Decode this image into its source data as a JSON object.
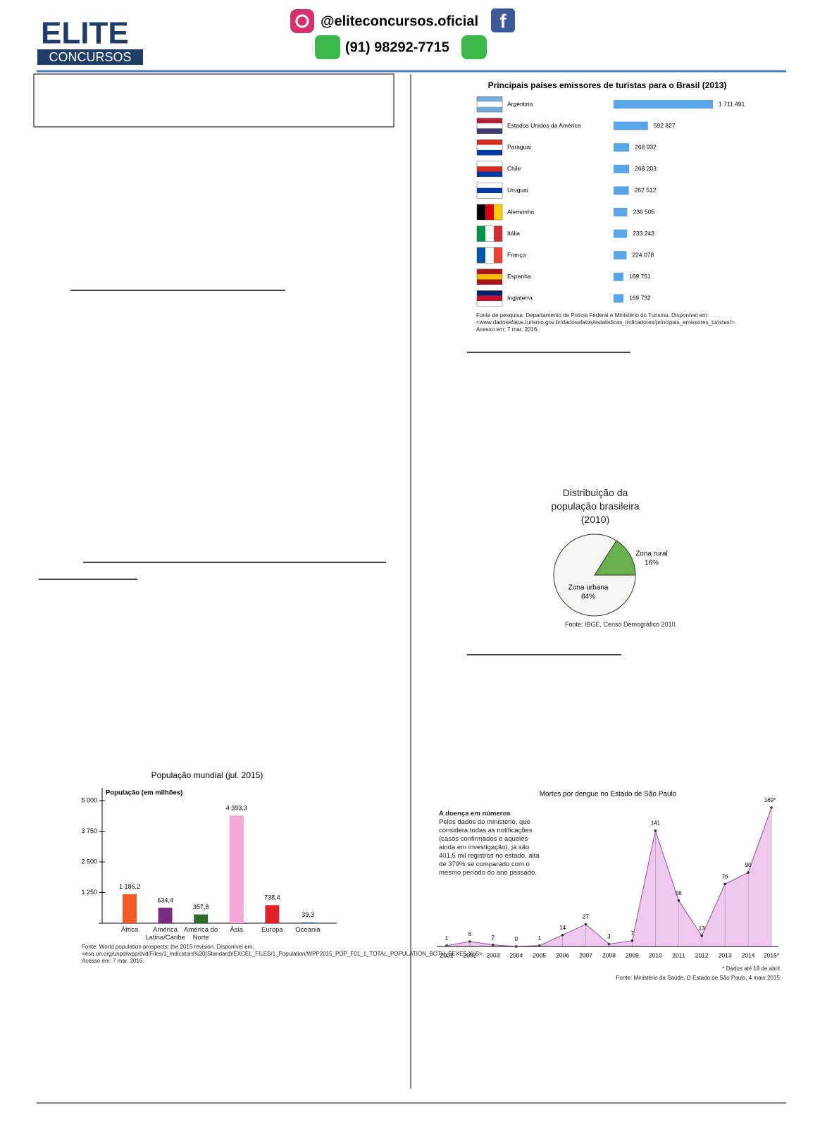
{
  "header": {
    "logo_top": "ELITE",
    "logo_bottom": "CONCURSOS",
    "instagram": "@eliteconcursos.oficial",
    "phone": "(91) 98292-7715"
  },
  "chart_data": [
    {
      "type": "hbar",
      "title": "Principais países emissores de turistas para o Brasil (2013)",
      "categories": [
        "Argentina",
        "Estados Unidos da América",
        "Paraguai",
        "Chile",
        "Uruguai",
        "Alemanha",
        "Itália",
        "França",
        "Espanha",
        "Inglaterra"
      ],
      "values": [
        1711491,
        592827,
        268932,
        268203,
        262512,
        236505,
        233243,
        224078,
        169751,
        169732
      ],
      "value_labels": [
        "1 711 491",
        "592 827",
        "268 932",
        "268 203",
        "262 512",
        "236 505",
        "233 243",
        "224 078",
        "169 751",
        "169 732"
      ],
      "color": "#5aa5e8",
      "source": "Fonte de pesquisa: Departamento de Polícia Federal e Ministério do Turismo. Disponível em: <www.dadosefatos.turismo.gov.br/dadosefatos/estatisticas_indicadores/principais_emissores_turistas/>. Acesso em: 7 mar. 2016."
    },
    {
      "type": "pie",
      "title": "Distribuição da população brasileira (2010)",
      "categories": [
        "Zona rural",
        "Zona urbana"
      ],
      "values": [
        16,
        84
      ],
      "value_labels": [
        "16%",
        "84%"
      ],
      "colors": [
        "#6ab04c",
        "#f7f7f2"
      ],
      "source": "Fonte: IBGE, Censo Demográfico 2010."
    },
    {
      "type": "bar",
      "title": "População mundial (jul. 2015)",
      "y_label": "População (em milhões)",
      "categories": [
        "África",
        "América Latina/Caribe",
        "América do Norte",
        "Ásia",
        "Europa",
        "Oceania"
      ],
      "values": [
        1186.2,
        634.4,
        357.8,
        4393.3,
        738.4,
        39.3
      ],
      "value_labels": [
        "1 186,2",
        "634,4",
        "357,8",
        "4 393,3",
        "738,4",
        "39,3"
      ],
      "colors": [
        "#f05a28",
        "#7b2d83",
        "#2e6b2e",
        "#f4a6d7",
        "#e0202a",
        "#3a7fd5"
      ],
      "ylim": [
        0,
        5000
      ],
      "yticks": [
        {
          "value": 1250,
          "label": "1 250"
        },
        {
          "value": 2500,
          "label": "2 500"
        },
        {
          "value": 3750,
          "label": "3 750"
        },
        {
          "value": 5000,
          "label": "5 000"
        }
      ],
      "source": "Fonte: World population prospects: the 2015 revision. Disponível em: <esa.un.org/unpd/wpp/dvd/Files/1_Indicators%20(Standard)/EXCEL_FILES/1_Population/WPP2015_POP_F01_1_TOTAL_POPULATION_BOTH_SEXES.XLS>. Acesso em: 7 mar. 2016."
    },
    {
      "type": "area",
      "title": "Mortes por dengue no Estado de São Paulo",
      "annotation_title": "A doença em números",
      "annotation": "Pelos dados do ministério, que considera todas as notificações (casos confirmados e aqueles ainda em investigação), já são 401,5 mil registros no estado, alta de 379% se comparado com o mesmo período do ano passado.",
      "categories": [
        "2001",
        "2002",
        "2003",
        "2004",
        "2005",
        "2006",
        "2007",
        "2008",
        "2009",
        "2010",
        "2011",
        "2012",
        "2013",
        "2014",
        "2015*"
      ],
      "values": [
        1,
        6,
        2,
        0,
        1,
        14,
        27,
        3,
        7,
        141,
        56,
        13,
        76,
        90,
        169
      ],
      "value_labels": [
        "1",
        "6",
        "2",
        "0",
        "1",
        "14",
        "27",
        "3",
        "7",
        "141",
        "56",
        "13",
        "76",
        "90",
        "169*"
      ],
      "color": "#f0c8ef",
      "line_color": "#9a4f9a",
      "footnote": "* Dados até 18 de abril.",
      "source": "Fonte: Ministério da Saúde, O Estado de São Paulo, 4 maio 2015."
    }
  ]
}
